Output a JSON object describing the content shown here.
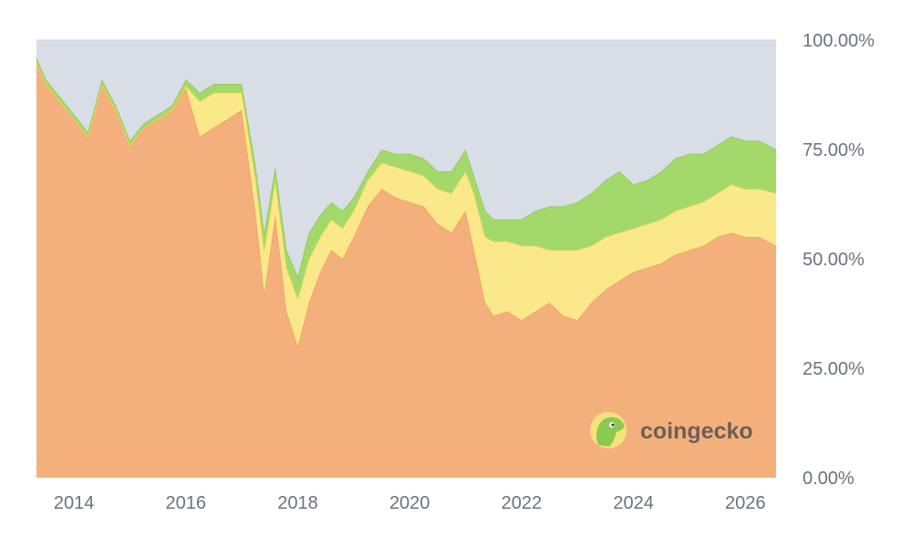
{
  "chart_data": {
    "type": "area",
    "stacked_percent": true,
    "x_ticks": [
      "2014",
      "2016",
      "2018",
      "2020",
      "2022",
      "2024",
      "2026"
    ],
    "y_ticks": [
      "100.00%",
      "75.00%",
      "50.00%",
      "25.00%",
      "0.00%"
    ],
    "ylim": [
      0,
      100
    ],
    "grid": false,
    "legend": "none",
    "x": [
      2013.33,
      2013.5,
      2013.75,
      2014.0,
      2014.25,
      2014.5,
      2014.75,
      2015.0,
      2015.25,
      2015.5,
      2015.75,
      2016.0,
      2016.25,
      2016.5,
      2016.75,
      2017.0,
      2017.25,
      2017.4,
      2017.6,
      2017.8,
      2018.0,
      2018.2,
      2018.4,
      2018.6,
      2018.8,
      2019.0,
      2019.25,
      2019.5,
      2019.75,
      2020.0,
      2020.25,
      2020.5,
      2020.75,
      2021.0,
      2021.15,
      2021.35,
      2021.5,
      2021.75,
      2022.0,
      2022.25,
      2022.5,
      2022.75,
      2023.0,
      2023.25,
      2023.5,
      2023.75,
      2024.0,
      2024.25,
      2024.5,
      2024.75,
      2025.0,
      2025.25,
      2025.5,
      2025.75,
      2026.0,
      2026.25,
      2026.55
    ],
    "series": [
      {
        "color": "#f4b07c",
        "stroke": "#f0a05a",
        "values": [
          95,
          90,
          86,
          82,
          78,
          90,
          84,
          76,
          80,
          82,
          84,
          89,
          78,
          80,
          82,
          84,
          60,
          42,
          60,
          38,
          30,
          40,
          47,
          52,
          50,
          55,
          62,
          66,
          64,
          63,
          62,
          58,
          56,
          61,
          52,
          40,
          37,
          38,
          36,
          38,
          40,
          37,
          36,
          40,
          43,
          45,
          47,
          48,
          49,
          51,
          52,
          53,
          55,
          56,
          55,
          55,
          53
        ]
      },
      {
        "color": "#fbe88a",
        "stroke": "#f5d94f",
        "values": [
          0,
          0,
          0,
          0,
          0,
          0,
          0,
          0,
          0,
          0,
          0,
          0.5,
          8,
          8,
          6,
          4,
          8,
          10,
          8,
          10,
          11,
          10,
          8,
          7,
          7,
          6,
          6,
          6,
          7,
          7,
          7,
          8,
          9,
          9,
          13,
          15,
          17,
          16,
          17,
          15,
          12,
          15,
          16,
          13,
          12,
          11,
          10,
          10,
          10,
          10,
          10,
          10,
          10,
          11,
          11,
          11,
          12
        ]
      },
      {
        "color": "#a3d96b",
        "stroke": "#8cc94f",
        "values": [
          1,
          1,
          1,
          1,
          1,
          1,
          1,
          1,
          1,
          1,
          1,
          1.5,
          2,
          2,
          2,
          2,
          3,
          4,
          3,
          4,
          5,
          6,
          5,
          4,
          4,
          3,
          2,
          3,
          3,
          4,
          4,
          4,
          5,
          5,
          4,
          6,
          5,
          5,
          6,
          8,
          10,
          10,
          11,
          12,
          13,
          14,
          10,
          10,
          11,
          12,
          12,
          11,
          11,
          11,
          11,
          11,
          10
        ]
      },
      {
        "color": "#d8dde6",
        "stroke": "#c9d2de",
        "values": [
          4,
          9,
          13,
          17,
          21,
          9,
          15,
          23,
          19,
          17,
          15,
          9,
          12,
          10,
          10,
          10,
          29,
          44,
          29,
          48,
          54,
          44,
          40,
          37,
          39,
          36,
          30,
          25,
          26,
          26,
          27,
          30,
          30,
          25,
          31,
          39,
          41,
          41,
          41,
          39,
          38,
          38,
          37,
          35,
          32,
          30,
          33,
          32,
          30,
          27,
          26,
          26,
          24,
          22,
          23,
          23,
          25
        ]
      }
    ]
  },
  "watermark": {
    "text": "coingecko",
    "icon": "coingecko-gecko-logo",
    "circle_color": "#f6e27a",
    "gecko_color": "#8cc94f"
  }
}
